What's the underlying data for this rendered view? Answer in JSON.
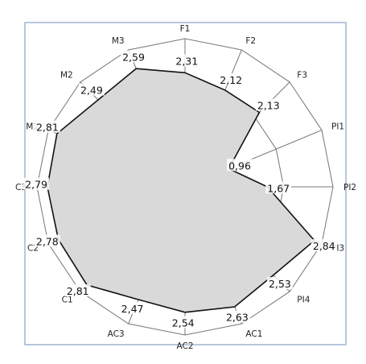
{
  "chart_data": {
    "type": "radar",
    "title": "",
    "categories": [
      "F1",
      "F2",
      "F3",
      "PI1",
      "PI2",
      "PI3",
      "PI4",
      "AC1",
      "AC2",
      "AC3",
      "C1",
      "C2",
      "C3",
      "M1",
      "M2",
      "M3"
    ],
    "values": [
      2.31,
      2.12,
      2.13,
      0.96,
      1.67,
      2.84,
      2.53,
      2.63,
      2.54,
      2.47,
      2.81,
      2.78,
      2.79,
      2.81,
      2.49,
      2.59
    ],
    "value_labels": [
      "2,31",
      "2,12",
      "2,13",
      "0,96",
      "1,67",
      "2,84",
      "2,53",
      "2,63",
      "2,54",
      "2,47",
      "2,81",
      "2,78",
      "2,79",
      "2,81",
      "2,49",
      "2,59"
    ],
    "rings": [
      1,
      2,
      3
    ],
    "rmax": 3,
    "grid": true,
    "legend": "none",
    "colors": {
      "fill": "#d9d9d9",
      "line": "#111111",
      "grid": "#777777",
      "frame": "#8aa2c9"
    }
  }
}
